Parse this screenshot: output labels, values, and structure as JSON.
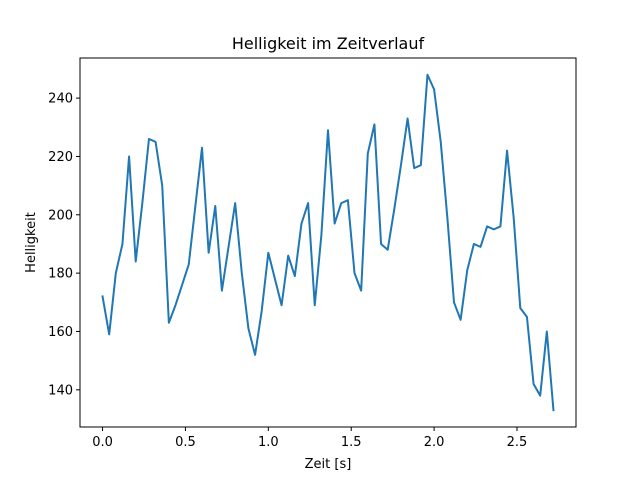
{
  "chart_data": {
    "type": "line",
    "title": "Helligkeit im Zeitverlauf",
    "xlabel": "Zeit [s]",
    "ylabel": "Helligkeit",
    "xlim": [
      -0.136,
      2.856
    ],
    "ylim": [
      127.25,
      253.75
    ],
    "xticks": [
      0.0,
      0.5,
      1.0,
      1.5,
      2.0,
      2.5
    ],
    "xtick_labels": [
      "0.0",
      "0.5",
      "1.0",
      "1.5",
      "2.0",
      "2.5"
    ],
    "yticks": [
      140,
      160,
      180,
      200,
      220,
      240
    ],
    "ytick_labels": [
      "140",
      "160",
      "180",
      "200",
      "220",
      "240"
    ],
    "grid": false,
    "line_color": "#1f77b4",
    "series": [
      {
        "name": "Helligkeit",
        "x": [
          0.0,
          0.04,
          0.08,
          0.12,
          0.16,
          0.2,
          0.24,
          0.28,
          0.32,
          0.36,
          0.4,
          0.44,
          0.48,
          0.52,
          0.56,
          0.6,
          0.64,
          0.68,
          0.72,
          0.76,
          0.8,
          0.84,
          0.88,
          0.92,
          0.96,
          1.0,
          1.04,
          1.08,
          1.12,
          1.16,
          1.2,
          1.24,
          1.28,
          1.32,
          1.36,
          1.4,
          1.44,
          1.48,
          1.52,
          1.56,
          1.6,
          1.64,
          1.68,
          1.72,
          1.76,
          1.8,
          1.84,
          1.88,
          1.92,
          1.96,
          2.0,
          2.04,
          2.08,
          2.12,
          2.16,
          2.2,
          2.24,
          2.28,
          2.32,
          2.36,
          2.4,
          2.44,
          2.48,
          2.52,
          2.56,
          2.6,
          2.64,
          2.68,
          2.72
        ],
        "y": [
          172,
          159,
          180,
          190,
          220,
          184,
          204,
          226,
          225,
          210,
          163,
          169,
          176,
          183,
          203,
          223,
          187,
          203,
          174,
          189,
          204,
          180,
          161,
          152,
          167,
          187,
          178,
          169,
          186,
          179,
          197,
          204,
          169,
          193,
          229,
          197,
          204,
          205,
          180,
          174,
          221,
          231,
          190,
          188,
          202,
          217,
          233,
          216,
          217,
          248,
          243,
          225,
          199,
          170,
          164,
          181,
          190,
          189,
          196,
          195,
          196,
          222,
          199,
          168,
          165,
          142,
          138,
          160,
          133
        ]
      }
    ]
  }
}
